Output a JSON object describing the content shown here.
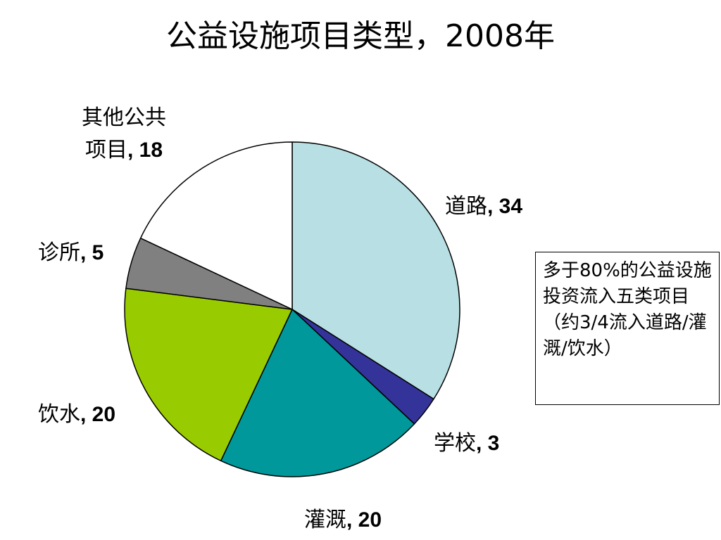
{
  "title": "公益设施项目类型，2008年",
  "chart_data": {
    "type": "pie",
    "title": "公益设施项目类型，2008年",
    "start_angle_deg": 0,
    "direction": "clockwise",
    "slices": [
      {
        "label": "道路",
        "value": 34,
        "color": "#b8dfe3"
      },
      {
        "label": "学校",
        "value": 3,
        "color": "#333399"
      },
      {
        "label": "灌溉",
        "value": 20,
        "color": "#00989a"
      },
      {
        "label": "饮水",
        "value": 20,
        "color": "#99cc00"
      },
      {
        "label": "诊所",
        "value": 5,
        "color": "#808080"
      },
      {
        "label": "其他公共项目",
        "value": 18,
        "color": "#ffffff"
      }
    ],
    "slice_labels": [
      {
        "name": "道路",
        "value": "34"
      },
      {
        "name": "学校",
        "value": "3"
      },
      {
        "name": "灌溉",
        "value": "20"
      },
      {
        "name": "饮水",
        "value": "20"
      },
      {
        "name": "诊所",
        "value": "5"
      },
      {
        "name": "其他公共\n项目",
        "value": "18"
      }
    ],
    "outline_color": "#000000"
  },
  "note": "多于80%的公益设施投资流入五类项目（约3/4流入道路/灌溉/饮水）"
}
